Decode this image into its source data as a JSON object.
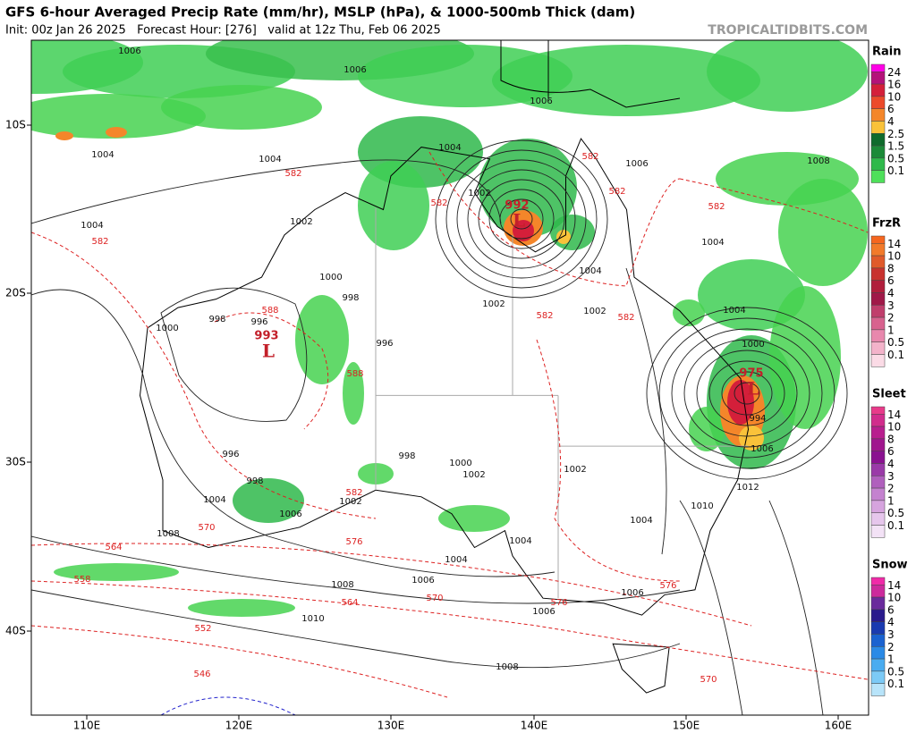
{
  "header": {
    "title": "GFS 6-hour Averaged Precip Rate (mm/hr), MSLP (hPa), & 1000-500mb Thick (dam)",
    "subtitle": "Init: 00z Jan 26 2025   Forecast Hour: [276]   valid at 12z Thu, Feb 06 2025",
    "brand": "TROPICALTIDBITS.COM"
  },
  "axes": {
    "lon": [
      "110E",
      "120E",
      "130E",
      "140E",
      "150E",
      "160E"
    ],
    "lat": [
      "10S",
      "20S",
      "30S",
      "40S"
    ]
  },
  "lows": [
    {
      "pressure": "992",
      "label": "L"
    },
    {
      "pressure": "993",
      "label": "L"
    },
    {
      "pressure": "975",
      "label": "L"
    }
  ],
  "isobar_labels": [
    "1006",
    "1006",
    "1006",
    "1004",
    "1004",
    "1004",
    "1002",
    "1002",
    "1004",
    "1008",
    "1006",
    "1004",
    "1000",
    "998",
    "996",
    "996",
    "998",
    "1000",
    "1002",
    "1004",
    "1004",
    "1002",
    "1000",
    "994",
    "1006",
    "1012",
    "1010",
    "1004",
    "1002",
    "998",
    "1000",
    "1002",
    "1004",
    "1008",
    "1004",
    "1006",
    "1006",
    "1006",
    "1008",
    "1010",
    "1008",
    "1004",
    "1002",
    "1006",
    "998",
    "996"
  ],
  "thickness_labels": [
    "582",
    "582",
    "582",
    "582",
    "582",
    "582",
    "588",
    "588",
    "582",
    "582",
    "570",
    "564",
    "576",
    "558",
    "552",
    "546",
    "564",
    "570",
    "576",
    "576",
    "570",
    "582"
  ],
  "legends": [
    {
      "title": "Rain",
      "top_color": "#ff00e6",
      "items": [
        {
          "label": "24",
          "color": "#b4127a"
        },
        {
          "label": "16",
          "color": "#d41f3a"
        },
        {
          "label": "10",
          "color": "#ec4a2a"
        },
        {
          "label": "6",
          "color": "#f4862a"
        },
        {
          "label": "4",
          "color": "#f9c23a"
        },
        {
          "label": "2.5",
          "color": "#0f6b2c"
        },
        {
          "label": "1.5",
          "color": "#1c8a38"
        },
        {
          "label": "0.5",
          "color": "#2fb94b"
        },
        {
          "label": "0.1",
          "color": "#4ee05a"
        }
      ]
    },
    {
      "title": "FrzR",
      "top_color": "#f5661f",
      "items": [
        {
          "label": "14",
          "color": "#f27a2a"
        },
        {
          "label": "10",
          "color": "#e05a2a"
        },
        {
          "label": "8",
          "color": "#c8322e"
        },
        {
          "label": "6",
          "color": "#b01e3c"
        },
        {
          "label": "4",
          "color": "#a01848"
        },
        {
          "label": "3",
          "color": "#c03e6c"
        },
        {
          "label": "2",
          "color": "#d8628e"
        },
        {
          "label": "1",
          "color": "#e888ad"
        },
        {
          "label": "0.5",
          "color": "#f3b3ca"
        },
        {
          "label": "0.1",
          "color": "#fbdbe6"
        }
      ]
    },
    {
      "title": "Sleet",
      "top_color": "#e83a8a",
      "items": [
        {
          "label": "14",
          "color": "#d12c8c"
        },
        {
          "label": "10",
          "color": "#b81e8e"
        },
        {
          "label": "8",
          "color": "#a0168e"
        },
        {
          "label": "6",
          "color": "#8a1290"
        },
        {
          "label": "4",
          "color": "#9a3aa8"
        },
        {
          "label": "3",
          "color": "#b060bd"
        },
        {
          "label": "2",
          "color": "#c482cf"
        },
        {
          "label": "1",
          "color": "#d6a4de"
        },
        {
          "label": "0.5",
          "color": "#e6c6ec"
        },
        {
          "label": "0.1",
          "color": "#f3e2f6"
        }
      ]
    },
    {
      "title": "Snow",
      "top_color": "#f02aa8",
      "items": [
        {
          "label": "14",
          "color": "#cc2a9c"
        },
        {
          "label": "10",
          "color": "#6a2a9c"
        },
        {
          "label": "6",
          "color": "#2a1a8c"
        },
        {
          "label": "4",
          "color": "#1a3ab0"
        },
        {
          "label": "3",
          "color": "#1a62d0"
        },
        {
          "label": "2",
          "color": "#2a8ae6"
        },
        {
          "label": "1",
          "color": "#4aacf0"
        },
        {
          "label": "0.5",
          "color": "#7ccaf6"
        },
        {
          "label": "0.1",
          "color": "#b8e4fa"
        }
      ]
    }
  ]
}
